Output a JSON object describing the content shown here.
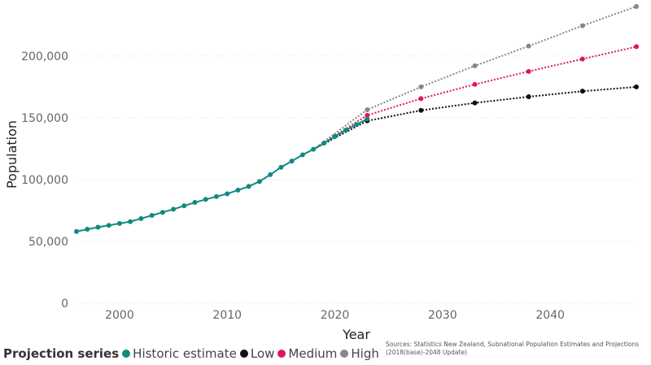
{
  "chart_data": {
    "type": "line",
    "xlabel": "Year",
    "ylabel": "Population",
    "xlim": [
      1996,
      2048
    ],
    "ylim": [
      0,
      240000
    ],
    "x_ticks": [
      2000,
      2010,
      2020,
      2030,
      2040
    ],
    "y_ticks": [
      0,
      50000,
      100000,
      150000,
      200000
    ],
    "y_tick_labels": [
      "0",
      "50,000",
      "100,000",
      "150,000",
      "200,000"
    ],
    "grid": "horizontal-dotted",
    "series": [
      {
        "name": "Historic estimate",
        "color": "#118a80",
        "style": "solid",
        "x": [
          1996,
          1997,
          1998,
          1999,
          2000,
          2001,
          2002,
          2003,
          2004,
          2005,
          2006,
          2007,
          2008,
          2009,
          2010,
          2011,
          2012,
          2013,
          2014,
          2015,
          2016,
          2017,
          2018,
          2019,
          2020,
          2021,
          2022,
          2023
        ],
        "y": [
          58000,
          59800,
          61500,
          63000,
          64500,
          66000,
          68500,
          71000,
          73500,
          76000,
          78800,
          81500,
          84000,
          86300,
          88500,
          91500,
          94500,
          98500,
          104000,
          110000,
          115000,
          120000,
          124500,
          129500,
          135000,
          140000,
          144500,
          149000
        ]
      },
      {
        "name": "Low",
        "color": "#111111",
        "style": "dotted",
        "x": [
          2018,
          2023,
          2028,
          2033,
          2038,
          2043,
          2048
        ],
        "y": [
          124500,
          147500,
          156000,
          162000,
          167000,
          171500,
          175000
        ]
      },
      {
        "name": "Medium",
        "color": "#e0175a",
        "style": "dotted",
        "x": [
          2018,
          2023,
          2028,
          2033,
          2038,
          2043,
          2048
        ],
        "y": [
          124500,
          152000,
          165500,
          177000,
          187500,
          197500,
          207500
        ]
      },
      {
        "name": "High",
        "color": "#888888",
        "style": "dotted",
        "x": [
          2018,
          2023,
          2028,
          2033,
          2038,
          2043,
          2048
        ],
        "y": [
          124500,
          156500,
          175000,
          192000,
          208000,
          224500,
          240000
        ]
      }
    ]
  },
  "legend": {
    "title": "Projection series",
    "items": [
      {
        "label": "Historic estimate",
        "color": "#118a80"
      },
      {
        "label": "Low",
        "color": "#111111"
      },
      {
        "label": "Medium",
        "color": "#e0175a"
      },
      {
        "label": "High",
        "color": "#888888"
      }
    ]
  },
  "source": {
    "line1": "Sources: Statistics New Zealand, Subnational Population Estimates and Projections",
    "line2": "(2018(base)-2048 Update)"
  }
}
